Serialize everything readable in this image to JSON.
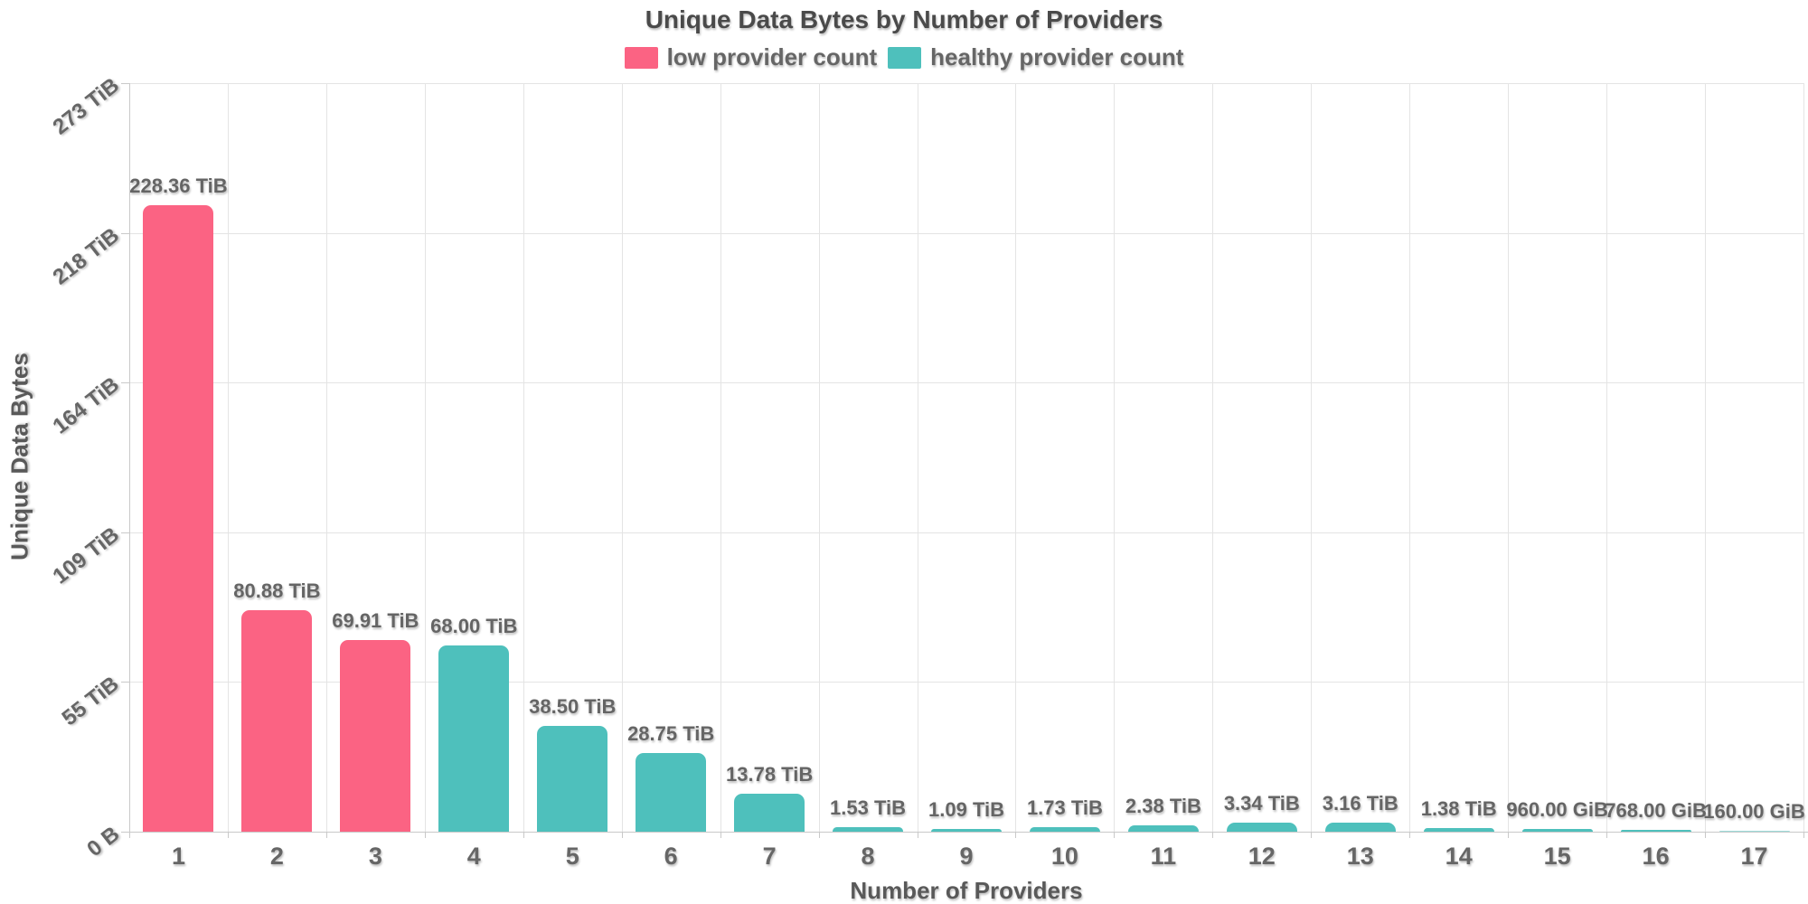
{
  "chart_data": {
    "type": "bar",
    "title": "Unique Data Bytes by Number of Providers",
    "xlabel": "Number of Providers",
    "ylabel": "Unique Data Bytes",
    "legend_position": "top",
    "grid": true,
    "colors": {
      "low": "#fb6383",
      "healthy": "#4ec0bc",
      "title_text": "#4a4a4a",
      "label_text": "#666666",
      "gridline": "#e4e4e4",
      "axis_line": "#c9c9c9",
      "background": "#ffffff"
    },
    "series": [
      {
        "name": "low provider count",
        "color": "#fb6383"
      },
      {
        "name": "healthy provider count",
        "color": "#4ec0bc"
      }
    ],
    "y_axis": {
      "ticks": [
        "0 B",
        "55 TiB",
        "109 TiB",
        "164 TiB",
        "218 TiB",
        "273 TiB"
      ],
      "max_tib": 273
    },
    "categories": [
      "1",
      "2",
      "3",
      "4",
      "5",
      "6",
      "7",
      "8",
      "9",
      "10",
      "11",
      "12",
      "13",
      "14",
      "15",
      "16",
      "17"
    ],
    "points": [
      {
        "providers": "1",
        "value_label": "228.36 TiB",
        "value_tib": 228.36,
        "series_index": 0
      },
      {
        "providers": "2",
        "value_label": "80.88 TiB",
        "value_tib": 80.88,
        "series_index": 0
      },
      {
        "providers": "3",
        "value_label": "69.91 TiB",
        "value_tib": 69.91,
        "series_index": 0
      },
      {
        "providers": "4",
        "value_label": "68.00 TiB",
        "value_tib": 68.0,
        "series_index": 1
      },
      {
        "providers": "5",
        "value_label": "38.50 TiB",
        "value_tib": 38.5,
        "series_index": 1
      },
      {
        "providers": "6",
        "value_label": "28.75 TiB",
        "value_tib": 28.75,
        "series_index": 1
      },
      {
        "providers": "7",
        "value_label": "13.78 TiB",
        "value_tib": 13.78,
        "series_index": 1
      },
      {
        "providers": "8",
        "value_label": "1.53 TiB",
        "value_tib": 1.53,
        "series_index": 1
      },
      {
        "providers": "9",
        "value_label": "1.09 TiB",
        "value_tib": 1.09,
        "series_index": 1
      },
      {
        "providers": "10",
        "value_label": "1.73 TiB",
        "value_tib": 1.73,
        "series_index": 1
      },
      {
        "providers": "11",
        "value_label": "2.38 TiB",
        "value_tib": 2.38,
        "series_index": 1
      },
      {
        "providers": "12",
        "value_label": "3.34 TiB",
        "value_tib": 3.34,
        "series_index": 1
      },
      {
        "providers": "13",
        "value_label": "3.16 TiB",
        "value_tib": 3.16,
        "series_index": 1
      },
      {
        "providers": "14",
        "value_label": "1.38 TiB",
        "value_tib": 1.38,
        "series_index": 1
      },
      {
        "providers": "15",
        "value_label": "960.00 GiB",
        "value_tib": 0.9375,
        "series_index": 1
      },
      {
        "providers": "16",
        "value_label": "768.00 GiB",
        "value_tib": 0.75,
        "series_index": 1
      },
      {
        "providers": "17",
        "value_label": "160.00 GiB",
        "value_tib": 0.15625,
        "series_index": 1
      }
    ]
  }
}
